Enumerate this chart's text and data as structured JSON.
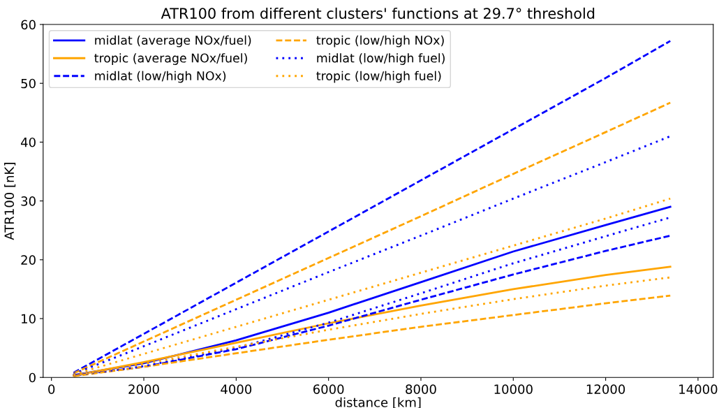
{
  "chart_data": {
    "type": "line",
    "title": "ATR100 from different clusters' functions at 29.7° threshold",
    "xlabel": "distance [km]",
    "ylabel": "ATR100 [nK]",
    "x": [
      480,
      2000,
      4000,
      6000,
      8000,
      10000,
      12000,
      13400
    ],
    "xlim": [
      -180,
      14330
    ],
    "ylim": [
      0,
      60
    ],
    "xticks": [
      0,
      2000,
      4000,
      6000,
      8000,
      10000,
      12000,
      14000
    ],
    "yticks": [
      0,
      10,
      20,
      30,
      40,
      50,
      60
    ],
    "grid": false,
    "legend": "top left",
    "marker": "none",
    "series": [
      {
        "name": "midlat (average NOx/fuel)",
        "color": "#0000ff",
        "line_style": "solid",
        "values": [
          0.4,
          2.4,
          6.3,
          11.0,
          16.2,
          21.4,
          25.9,
          29.0
        ]
      },
      {
        "name": "tropic (average NOx/fuel)",
        "color": "#ffa500",
        "line_style": "solid",
        "values": [
          0.3,
          2.6,
          5.9,
          9.2,
          12.2,
          15.0,
          17.4,
          18.8
        ]
      },
      {
        "name": "midlat (low/high NOx)",
        "color": "#0000ff",
        "line_style": "dashed",
        "values": [
          0.8,
          7.4,
          16.1,
          24.8,
          33.5,
          42.2,
          50.9,
          57.2
        ]
      },
      {
        "name": "tropic (low/high NOx)",
        "color": "#ffa500",
        "line_style": "dashed",
        "values": [
          0.7,
          6.1,
          13.2,
          20.3,
          27.4,
          34.6,
          41.7,
          46.7
        ]
      },
      {
        "name": "midlat (low/high fuel)",
        "color": "#0000ff",
        "line_style": "dotted",
        "values": [
          0.6,
          5.3,
          11.6,
          17.9,
          24.1,
          30.4,
          36.6,
          41.0
        ]
      },
      {
        "name": "tropic (low/high fuel)",
        "color": "#ffa500",
        "line_style": "dotted",
        "values": [
          0.5,
          4.0,
          8.6,
          13.2,
          17.8,
          22.4,
          27.0,
          30.4
        ]
      },
      {
        "color": "#0000ff",
        "line_style": "dashed",
        "values": [
          0.3,
          1.8,
          4.8,
          8.8,
          13.2,
          17.5,
          21.5,
          24.1
        ]
      },
      {
        "color": "#ffa500",
        "line_style": "dashed",
        "values": [
          0.2,
          1.8,
          4.1,
          6.4,
          8.6,
          10.6,
          12.6,
          13.9
        ]
      },
      {
        "color": "#0000ff",
        "line_style": "dotted",
        "values": [
          0.3,
          1.9,
          5.0,
          9.3,
          14.3,
          19.4,
          24.0,
          27.2
        ]
      },
      {
        "color": "#ffa500",
        "line_style": "dotted",
        "values": [
          0.3,
          2.3,
          5.2,
          8.1,
          10.8,
          13.3,
          15.6,
          17.0
        ]
      }
    ]
  }
}
